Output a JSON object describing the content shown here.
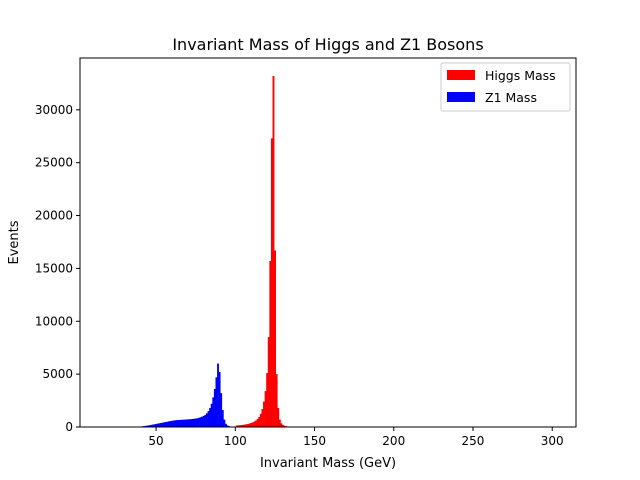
{
  "chart_data": {
    "type": "bar",
    "title": "Invariant Mass of Higgs and Z1 Bosons",
    "xlabel": "Invariant Mass (GeV)",
    "ylabel": "Events",
    "xlim": [
      2,
      315
    ],
    "ylim": [
      0,
      34900
    ],
    "xticks": [
      50,
      100,
      150,
      200,
      250,
      300
    ],
    "yticks": [
      0,
      5000,
      10000,
      15000,
      20000,
      25000,
      30000
    ],
    "grid": false,
    "legend_position": "top-right",
    "bin_width": 1,
    "series": [
      {
        "name": "Higgs Mass",
        "color": "#ff0000",
        "x": [
          101,
          102,
          103,
          104,
          105,
          106,
          107,
          108,
          109,
          110,
          111,
          112,
          113,
          114,
          115,
          116,
          117,
          118,
          119,
          120,
          121,
          122,
          123,
          124,
          125,
          126,
          127,
          128,
          129,
          130,
          131,
          132,
          133,
          134,
          135
        ],
        "values": [
          150,
          160,
          170,
          190,
          210,
          230,
          260,
          290,
          330,
          380,
          440,
          520,
          620,
          760,
          950,
          1250,
          1700,
          2400,
          3400,
          5100,
          8500,
          15700,
          27300,
          33200,
          16700,
          5000,
          1800,
          700,
          350,
          200,
          120,
          80,
          50,
          30,
          20
        ]
      },
      {
        "name": "Z1 Mass",
        "color": "#0000ff",
        "x": [
          38,
          39,
          40,
          41,
          42,
          43,
          44,
          45,
          46,
          47,
          48,
          49,
          50,
          51,
          52,
          53,
          54,
          55,
          56,
          57,
          58,
          59,
          60,
          61,
          62,
          63,
          64,
          65,
          66,
          67,
          68,
          69,
          70,
          71,
          72,
          73,
          74,
          75,
          76,
          77,
          78,
          79,
          80,
          81,
          82,
          83,
          84,
          85,
          86,
          87,
          88,
          89,
          90,
          91,
          92,
          93,
          94,
          95,
          96,
          97,
          98,
          99,
          100
        ],
        "values": [
          20,
          30,
          40,
          60,
          80,
          100,
          120,
          150,
          170,
          200,
          230,
          260,
          290,
          320,
          350,
          380,
          410,
          440,
          470,
          500,
          530,
          560,
          590,
          610,
          630,
          650,
          660,
          670,
          680,
          690,
          700,
          710,
          720,
          730,
          740,
          760,
          780,
          800,
          830,
          870,
          920,
          980,
          1050,
          1150,
          1300,
          1500,
          1800,
          2200,
          2800,
          3600,
          4700,
          6000,
          5200,
          3200,
          1600,
          700,
          300,
          150,
          80,
          40,
          20,
          10,
          5
        ]
      }
    ]
  }
}
